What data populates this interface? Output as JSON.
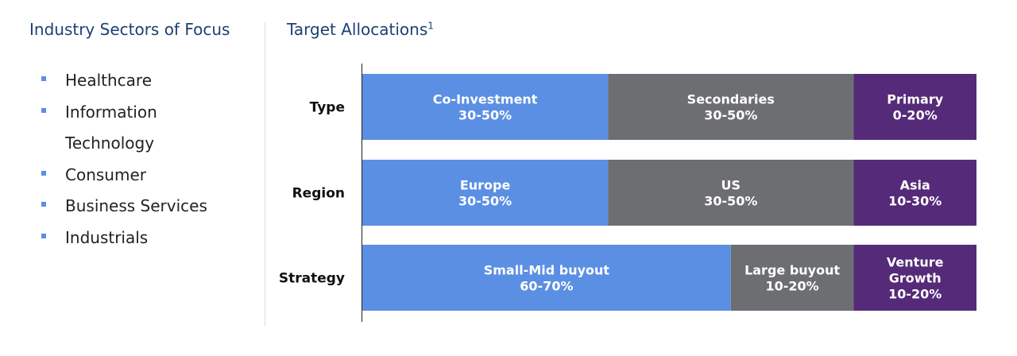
{
  "left": {
    "title": "Industry Sectors of Focus",
    "items": [
      "Healthcare",
      "Information Technology",
      "Consumer",
      "Business Services",
      "Industrials"
    ]
  },
  "right": {
    "title": "Target Allocations",
    "footnote": "1"
  },
  "colors": {
    "title": "#1f3f73",
    "bullet": "#5b8fe3",
    "blue": "#5b8fe3",
    "gray": "#6d6e71",
    "purple": "#552a78"
  },
  "chart_data": {
    "type": "bar",
    "orientation": "horizontal",
    "stacked": true,
    "categories": [
      "Type",
      "Region",
      "Strategy"
    ],
    "rows": [
      {
        "category": "Type",
        "segments": [
          {
            "name": "Co-Investment",
            "range": "30-50%",
            "share": 40,
            "color": "#5b8fe3"
          },
          {
            "name": "Secondaries",
            "range": "30-50%",
            "share": 40,
            "color": "#6d6e71"
          },
          {
            "name": "Primary",
            "range": "0-20%",
            "share": 20,
            "color": "#552a78"
          }
        ]
      },
      {
        "category": "Region",
        "segments": [
          {
            "name": "Europe",
            "range": "30-50%",
            "share": 40,
            "color": "#5b8fe3"
          },
          {
            "name": "US",
            "range": "30-50%",
            "share": 40,
            "color": "#6d6e71"
          },
          {
            "name": "Asia",
            "range": "10-30%",
            "share": 20,
            "color": "#552a78"
          }
        ]
      },
      {
        "category": "Strategy",
        "segments": [
          {
            "name": "Small-Mid buyout",
            "range": "60-70%",
            "share": 60,
            "color": "#5b8fe3"
          },
          {
            "name": "Large buyout",
            "range": "10-20%",
            "share": 20,
            "color": "#6d6e71"
          },
          {
            "name": "Venture Growth",
            "range": "10-20%",
            "share": 20,
            "color": "#552a78"
          }
        ]
      }
    ],
    "xlim": [
      0,
      100
    ],
    "grid": false,
    "legend": "none"
  }
}
